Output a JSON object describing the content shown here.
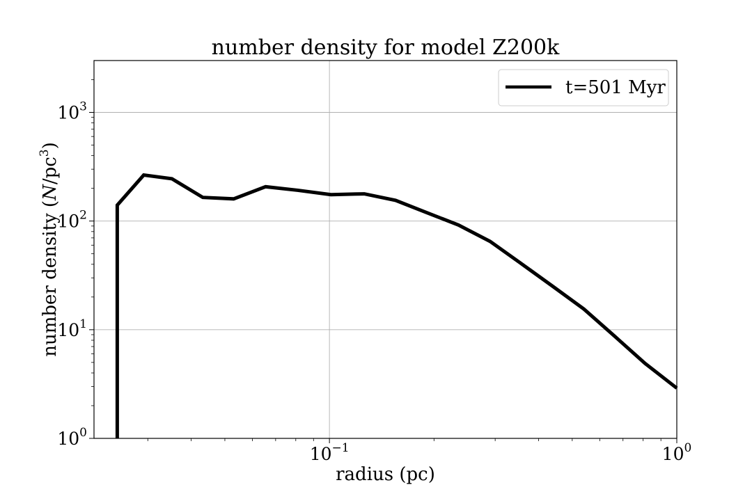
{
  "chart_data": {
    "type": "line",
    "title": "number density for model Z200k",
    "xlabel": "radius (pc)",
    "ylabel_prefix": "number density (",
    "ylabel_N": "N",
    "ylabel_unit": "/pc",
    "ylabel_exp": "3",
    "ylabel_suffix": ")",
    "x_scale": "log",
    "y_scale": "log",
    "xlim": [
      0.021,
      1.0
    ],
    "ylim": [
      1,
      3000
    ],
    "grid": true,
    "legend_position": "upper right",
    "x_ticks": [
      {
        "base": "10",
        "exp": "−1",
        "value": 0.1
      },
      {
        "base": "10",
        "exp": "0",
        "value": 1.0
      }
    ],
    "y_ticks": [
      {
        "base": "10",
        "exp": "0",
        "value": 1
      },
      {
        "base": "10",
        "exp": "1",
        "value": 10
      },
      {
        "base": "10",
        "exp": "2",
        "value": 100
      },
      {
        "base": "10",
        "exp": "3",
        "value": 1000
      }
    ],
    "series": [
      {
        "name": "t=501 Myr",
        "color": "#000000",
        "x": [
          0.0245,
          0.0245,
          0.0292,
          0.0352,
          0.0432,
          0.053,
          0.0655,
          0.081,
          0.101,
          0.126,
          0.155,
          0.19,
          0.235,
          0.29,
          0.355,
          0.44,
          0.54,
          0.66,
          0.81,
          1.0
        ],
        "y": [
          1,
          140,
          265,
          245,
          165,
          160,
          207,
          192,
          175,
          178,
          155,
          120,
          92,
          65,
          41,
          25,
          15.5,
          8.8,
          4.9,
          2.9
        ]
      }
    ]
  }
}
